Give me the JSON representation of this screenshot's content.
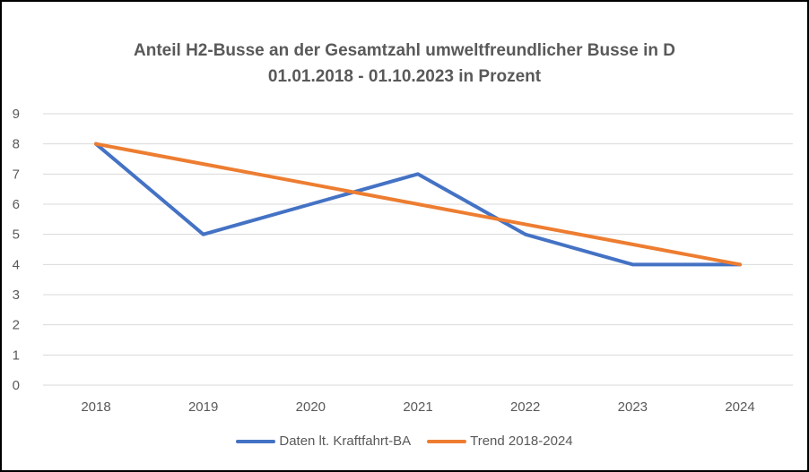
{
  "chart_data": {
    "type": "line",
    "title_line1": "Anteil H2-Busse an der Gesamtzahl umweltfreundlicher Busse in D",
    "title_line2": "01.01.2018 - 01.10.2023  in Prozent",
    "xlabel": "",
    "ylabel": "",
    "categories": [
      "2018",
      "2019",
      "2020",
      "2021",
      "2022",
      "2023",
      "2024"
    ],
    "ylim": [
      0,
      9
    ],
    "yticks": [
      "0",
      "1",
      "2",
      "3",
      "4",
      "5",
      "6",
      "7",
      "8",
      "9"
    ],
    "grid": true,
    "legend_position": "bottom",
    "series": [
      {
        "name": "Daten lt. Kraftfahrt-BA",
        "color": "#4472C4",
        "values": [
          8,
          5,
          6,
          7,
          5,
          4,
          4
        ]
      },
      {
        "name": "Trend 2018-2024",
        "color": "#ED7D31",
        "values": [
          8,
          7.333,
          6.667,
          6,
          5.333,
          4.667,
          4
        ]
      }
    ]
  }
}
